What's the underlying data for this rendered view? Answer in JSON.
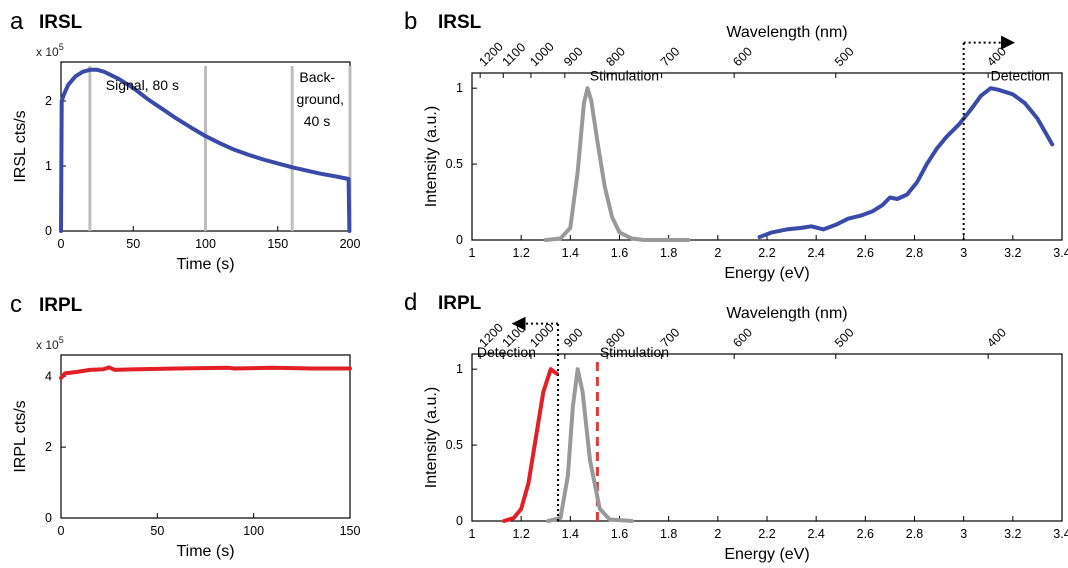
{
  "panels": {
    "a": {
      "letter": "a",
      "title": "IRSL",
      "multiplier_base": "x 10",
      "multiplier_exp": "5"
    },
    "b": {
      "letter": "b",
      "title": "IRSL"
    },
    "c": {
      "letter": "c",
      "title": "IRPL",
      "multiplier_base": "x 10",
      "multiplier_exp": "5"
    },
    "d": {
      "letter": "d",
      "title": "IRPL"
    }
  },
  "colors": {
    "irsl": "#3a4aa8",
    "irpl": "#e21f26",
    "stim": "#999999",
    "gate": "#bdbdbd",
    "stim_line": "#e03a3a"
  },
  "chart_data": [
    {
      "id": "a",
      "type": "line",
      "title": "",
      "xlabel": "Time (s)",
      "ylabel": "IRSL cts/s",
      "xlim": [
        0,
        200
      ],
      "ylim": [
        0,
        2.6
      ],
      "xticks": [
        0,
        50,
        100,
        150,
        200
      ],
      "yticks": [
        0,
        1,
        2
      ],
      "y_scale_note": "x 10^5",
      "series": [
        {
          "color": "#3a4aa8",
          "points": [
            [
              0,
              0
            ],
            [
              0.5,
              2.0
            ],
            [
              2,
              2.1
            ],
            [
              5,
              2.25
            ],
            [
              10,
              2.38
            ],
            [
              15,
              2.45
            ],
            [
              20,
              2.48
            ],
            [
              25,
              2.48
            ],
            [
              30,
              2.45
            ],
            [
              40,
              2.34
            ],
            [
              50,
              2.2
            ],
            [
              60,
              2.03
            ],
            [
              70,
              1.88
            ],
            [
              80,
              1.73
            ],
            [
              90,
              1.59
            ],
            [
              100,
              1.46
            ],
            [
              110,
              1.35
            ],
            [
              120,
              1.25
            ],
            [
              130,
              1.17
            ],
            [
              140,
              1.1
            ],
            [
              150,
              1.04
            ],
            [
              160,
              0.98
            ],
            [
              170,
              0.93
            ],
            [
              180,
              0.88
            ],
            [
              190,
              0.84
            ],
            [
              199,
              0.8
            ],
            [
              199.6,
              0.0
            ]
          ]
        }
      ],
      "gates": [
        20,
        100,
        160,
        200
      ],
      "annotations": [
        "Signal, 80 s",
        "Back-",
        "ground,",
        "40 s"
      ]
    },
    {
      "id": "b",
      "type": "line",
      "title": "",
      "xlabel": "Energy (eV)",
      "ylabel": "Intensity (a.u.)",
      "top_label": "Wavelength (nm)",
      "xlim": [
        1,
        3.4
      ],
      "ylim": [
        0,
        1.1
      ],
      "xticks": [
        "1",
        "1.2",
        "1.4",
        "1.6",
        "1.8",
        "2",
        "2.2",
        "2.4",
        "2.6",
        "2.8",
        "3",
        "3.2",
        "3.4"
      ],
      "yticks": [
        "0",
        "0.5",
        "1"
      ],
      "top_ticks": [
        "1200",
        "1100",
        "1000",
        "900",
        "800",
        "700",
        "600",
        "500",
        "400"
      ],
      "series": [
        {
          "name": "Stimulation",
          "color": "#999999",
          "points": [
            [
              1.3,
              0
            ],
            [
              1.36,
              0.01
            ],
            [
              1.4,
              0.08
            ],
            [
              1.43,
              0.45
            ],
            [
              1.455,
              0.9
            ],
            [
              1.47,
              1.0
            ],
            [
              1.485,
              0.92
            ],
            [
              1.51,
              0.65
            ],
            [
              1.54,
              0.35
            ],
            [
              1.57,
              0.15
            ],
            [
              1.6,
              0.05
            ],
            [
              1.65,
              0.01
            ],
            [
              1.7,
              0
            ],
            [
              1.88,
              0
            ]
          ]
        },
        {
          "name": "Detection",
          "color": "#3a4aa8",
          "points": [
            [
              2.17,
              0.02
            ],
            [
              2.22,
              0.05
            ],
            [
              2.28,
              0.07
            ],
            [
              2.34,
              0.08
            ],
            [
              2.38,
              0.09
            ],
            [
              2.43,
              0.07
            ],
            [
              2.48,
              0.1
            ],
            [
              2.53,
              0.14
            ],
            [
              2.58,
              0.16
            ],
            [
              2.63,
              0.19
            ],
            [
              2.67,
              0.23
            ],
            [
              2.7,
              0.28
            ],
            [
              2.73,
              0.27
            ],
            [
              2.77,
              0.3
            ],
            [
              2.81,
              0.38
            ],
            [
              2.85,
              0.5
            ],
            [
              2.89,
              0.6
            ],
            [
              2.93,
              0.68
            ],
            [
              2.98,
              0.76
            ],
            [
              3.03,
              0.86
            ],
            [
              3.07,
              0.95
            ],
            [
              3.11,
              1.0
            ],
            [
              3.14,
              0.99
            ],
            [
              3.2,
              0.96
            ],
            [
              3.25,
              0.9
            ],
            [
              3.3,
              0.8
            ],
            [
              3.36,
              0.63
            ]
          ]
        }
      ],
      "marker": {
        "x": 3.0,
        "kind": "dotted-arrow-right"
      },
      "annotations": [
        "Stimulation",
        "Detection"
      ]
    },
    {
      "id": "c",
      "type": "line",
      "title": "",
      "xlabel": "Time (s)",
      "ylabel": "IRPL cts/s",
      "xlim": [
        0,
        150
      ],
      "ylim": [
        0,
        4.6
      ],
      "xticks": [
        0,
        50,
        100,
        150
      ],
      "yticks": [
        0,
        2,
        4
      ],
      "y_scale_note": "x 10^5",
      "series": [
        {
          "color": "#e21f26",
          "points": [
            [
              0,
              3.95
            ],
            [
              2,
              4.08
            ],
            [
              8,
              4.12
            ],
            [
              15,
              4.18
            ],
            [
              22,
              4.2
            ],
            [
              25,
              4.25
            ],
            [
              28,
              4.18
            ],
            [
              40,
              4.2
            ],
            [
              60,
              4.22
            ],
            [
              87,
              4.24
            ],
            [
              90,
              4.22
            ],
            [
              110,
              4.24
            ],
            [
              130,
              4.22
            ],
            [
              150,
              4.22
            ]
          ]
        }
      ]
    },
    {
      "id": "d",
      "type": "line",
      "title": "",
      "xlabel": "Energy (eV)",
      "ylabel": "Intensity (a.u.)",
      "top_label": "Wavelength (nm)",
      "xlim": [
        1,
        3.4
      ],
      "ylim": [
        0,
        1.1
      ],
      "xticks": [
        "1",
        "1.2",
        "1.4",
        "1.6",
        "1.8",
        "2",
        "2.2",
        "2.4",
        "2.6",
        "2.8",
        "3",
        "3.2",
        "3.4"
      ],
      "yticks": [
        "0",
        "0.5",
        "1"
      ],
      "top_ticks": [
        "1200",
        "1100",
        "1000",
        "900",
        "800",
        "700",
        "600",
        "500",
        "400"
      ],
      "series": [
        {
          "name": "Detection",
          "color": "#e21f26",
          "points": [
            [
              1.13,
              0
            ],
            [
              1.17,
              0.02
            ],
            [
              1.2,
              0.08
            ],
            [
              1.23,
              0.25
            ],
            [
              1.26,
              0.55
            ],
            [
              1.29,
              0.85
            ],
            [
              1.32,
              1.0
            ],
            [
              1.345,
              0.97
            ]
          ]
        },
        {
          "name": "Stimulation",
          "color": "#999999",
          "points": [
            [
              1.31,
              0
            ],
            [
              1.36,
              0.02
            ],
            [
              1.39,
              0.3
            ],
            [
              1.41,
              0.75
            ],
            [
              1.43,
              1.0
            ],
            [
              1.45,
              0.85
            ],
            [
              1.48,
              0.4
            ],
            [
              1.52,
              0.08
            ],
            [
              1.56,
              0.01
            ],
            [
              1.65,
              0
            ]
          ]
        }
      ],
      "marker": {
        "x": 1.35,
        "kind": "dotted-arrow-left"
      },
      "stim_line": {
        "x": 1.51
      },
      "annotations": [
        "Detection",
        "Stimulation"
      ]
    }
  ]
}
